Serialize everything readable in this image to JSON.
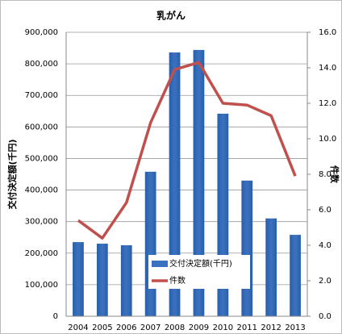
{
  "chart_data": {
    "type": "bar-line",
    "title": "乳がん",
    "y_label": "交付決定額(千円)",
    "y2_label": "件数",
    "categories": [
      "2004",
      "2005",
      "2006",
      "2007",
      "2008",
      "2009",
      "2010",
      "2011",
      "2012",
      "2013"
    ],
    "series": [
      {
        "name": "交付決定額(千円)",
        "type": "bar",
        "color": "#3b72c0",
        "values": [
          235000,
          230000,
          225000,
          458000,
          836000,
          844000,
          642000,
          430000,
          310000,
          258000
        ]
      },
      {
        "name": "件数",
        "type": "line",
        "axis": "y2",
        "color": "#c0504d",
        "values": [
          5.4,
          4.4,
          6.4,
          10.9,
          13.9,
          14.3,
          12.0,
          11.9,
          11.3,
          7.9
        ]
      }
    ],
    "ylim": [
      0,
      900000
    ],
    "yticks": [
      0,
      {
        "value": 100000,
        "label": "100,000"
      },
      {
        "value": 200000,
        "label": "200,000"
      },
      {
        "value": 300000,
        "label": "300,000"
      },
      {
        "value": 400000,
        "label": "400,000"
      },
      {
        "value": 500000,
        "label": "500,000"
      },
      {
        "value": 600000,
        "label": "600,000"
      },
      {
        "value": 700000,
        "label": "700,000"
      },
      {
        "value": 800000,
        "label": "800,000"
      },
      {
        "value": 900000,
        "label": "900,000"
      }
    ],
    "y2lim": [
      0,
      16
    ],
    "y2ticks": [
      {
        "value": 0,
        "label": "0.0"
      },
      {
        "value": 2,
        "label": "2.0"
      },
      {
        "value": 4,
        "label": "4.0"
      },
      {
        "value": 6,
        "label": "6.0"
      },
      {
        "value": 8,
        "label": "8.0"
      },
      {
        "value": 10,
        "label": "10.0"
      },
      {
        "value": 12,
        "label": "12.0"
      },
      {
        "value": 14,
        "label": "14.0"
      },
      {
        "value": 16,
        "label": "16.0"
      }
    ],
    "grid": true,
    "legend": "inside-bottom"
  }
}
